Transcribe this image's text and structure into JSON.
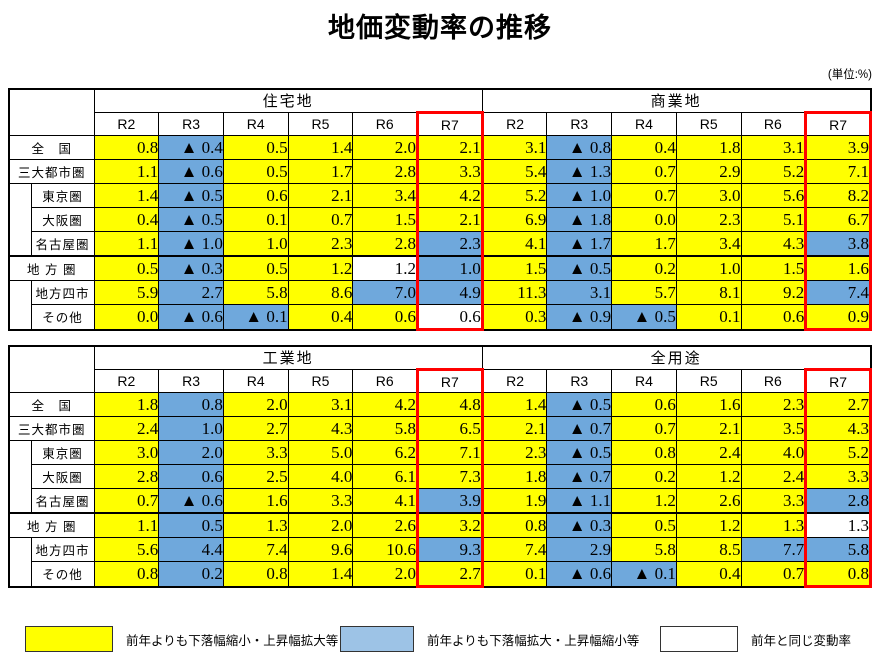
{
  "title": "地価変動率の推移",
  "unit_note": "(単位:%)",
  "colors": {
    "up": "#FFFF00",
    "down": "#6FA8DC",
    "same": "#FFFFFF",
    "legend_down": "#9DC3E6",
    "highlight_border": "#FF0000"
  },
  "year_headers": [
    "R2",
    "R3",
    "R4",
    "R5",
    "R6",
    "R7"
  ],
  "rows": [
    {
      "label": "全　国",
      "spacer": 0
    },
    {
      "label": "三大都市圏",
      "spacer": 0
    },
    {
      "label": "東京圏",
      "spacer": 3
    },
    {
      "label": "大阪圏",
      "spacer": -1
    },
    {
      "label": "名古屋圏",
      "spacer": -1
    },
    {
      "label": "地 方 圏",
      "spacer": 0
    },
    {
      "label": "地方四市",
      "spacer": 2
    },
    {
      "label": "その他",
      "spacer": -1
    }
  ],
  "tables": [
    {
      "sections": [
        {
          "name": "住宅地",
          "rows": [
            [
              [
                "0.8",
                "y"
              ],
              [
                "▲ 0.4",
                "b"
              ],
              [
                "0.5",
                "y"
              ],
              [
                "1.4",
                "y"
              ],
              [
                "2.0",
                "y"
              ],
              [
                "2.1",
                "y"
              ]
            ],
            [
              [
                "1.1",
                "y"
              ],
              [
                "▲ 0.6",
                "b"
              ],
              [
                "0.5",
                "y"
              ],
              [
                "1.7",
                "y"
              ],
              [
                "2.8",
                "y"
              ],
              [
                "3.3",
                "y"
              ]
            ],
            [
              [
                "1.4",
                "y"
              ],
              [
                "▲ 0.5",
                "b"
              ],
              [
                "0.6",
                "y"
              ],
              [
                "2.1",
                "y"
              ],
              [
                "3.4",
                "y"
              ],
              [
                "4.2",
                "y"
              ]
            ],
            [
              [
                "0.4",
                "y"
              ],
              [
                "▲ 0.5",
                "b"
              ],
              [
                "0.1",
                "y"
              ],
              [
                "0.7",
                "y"
              ],
              [
                "1.5",
                "y"
              ],
              [
                "2.1",
                "y"
              ]
            ],
            [
              [
                "1.1",
                "y"
              ],
              [
                "▲ 1.0",
                "b"
              ],
              [
                "1.0",
                "y"
              ],
              [
                "2.3",
                "y"
              ],
              [
                "2.8",
                "y"
              ],
              [
                "2.3",
                "b"
              ]
            ],
            [
              [
                "0.5",
                "y"
              ],
              [
                "▲ 0.3",
                "b"
              ],
              [
                "0.5",
                "y"
              ],
              [
                "1.2",
                "y"
              ],
              [
                "1.2",
                "w"
              ],
              [
                "1.0",
                "b"
              ]
            ],
            [
              [
                "5.9",
                "y"
              ],
              [
                "2.7",
                "b"
              ],
              [
                "5.8",
                "y"
              ],
              [
                "8.6",
                "y"
              ],
              [
                "7.0",
                "b"
              ],
              [
                "4.9",
                "b"
              ]
            ],
            [
              [
                "0.0",
                "y"
              ],
              [
                "▲ 0.6",
                "b"
              ],
              [
                "▲ 0.1",
                "b"
              ],
              [
                "0.4",
                "y"
              ],
              [
                "0.6",
                "y"
              ],
              [
                "0.6",
                "w"
              ]
            ]
          ]
        },
        {
          "name": "商業地",
          "rows": [
            [
              [
                "3.1",
                "y"
              ],
              [
                "▲ 0.8",
                "b"
              ],
              [
                "0.4",
                "y"
              ],
              [
                "1.8",
                "y"
              ],
              [
                "3.1",
                "y"
              ],
              [
                "3.9",
                "y"
              ]
            ],
            [
              [
                "5.4",
                "y"
              ],
              [
                "▲ 1.3",
                "b"
              ],
              [
                "0.7",
                "y"
              ],
              [
                "2.9",
                "y"
              ],
              [
                "5.2",
                "y"
              ],
              [
                "7.1",
                "y"
              ]
            ],
            [
              [
                "5.2",
                "y"
              ],
              [
                "▲ 1.0",
                "b"
              ],
              [
                "0.7",
                "y"
              ],
              [
                "3.0",
                "y"
              ],
              [
                "5.6",
                "y"
              ],
              [
                "8.2",
                "y"
              ]
            ],
            [
              [
                "6.9",
                "y"
              ],
              [
                "▲ 1.8",
                "b"
              ],
              [
                "0.0",
                "y"
              ],
              [
                "2.3",
                "y"
              ],
              [
                "5.1",
                "y"
              ],
              [
                "6.7",
                "y"
              ]
            ],
            [
              [
                "4.1",
                "y"
              ],
              [
                "▲ 1.7",
                "b"
              ],
              [
                "1.7",
                "y"
              ],
              [
                "3.4",
                "y"
              ],
              [
                "4.3",
                "y"
              ],
              [
                "3.8",
                "b"
              ]
            ],
            [
              [
                "1.5",
                "y"
              ],
              [
                "▲ 0.5",
                "b"
              ],
              [
                "0.2",
                "y"
              ],
              [
                "1.0",
                "y"
              ],
              [
                "1.5",
                "y"
              ],
              [
                "1.6",
                "y"
              ]
            ],
            [
              [
                "11.3",
                "y"
              ],
              [
                "3.1",
                "b"
              ],
              [
                "5.7",
                "y"
              ],
              [
                "8.1",
                "y"
              ],
              [
                "9.2",
                "y"
              ],
              [
                "7.4",
                "b"
              ]
            ],
            [
              [
                "0.3",
                "y"
              ],
              [
                "▲ 0.9",
                "b"
              ],
              [
                "▲ 0.5",
                "b"
              ],
              [
                "0.1",
                "y"
              ],
              [
                "0.6",
                "y"
              ],
              [
                "0.9",
                "y"
              ]
            ]
          ]
        }
      ]
    },
    {
      "sections": [
        {
          "name": "工業地",
          "rows": [
            [
              [
                "1.8",
                "y"
              ],
              [
                "0.8",
                "b"
              ],
              [
                "2.0",
                "y"
              ],
              [
                "3.1",
                "y"
              ],
              [
                "4.2",
                "y"
              ],
              [
                "4.8",
                "y"
              ]
            ],
            [
              [
                "2.4",
                "y"
              ],
              [
                "1.0",
                "b"
              ],
              [
                "2.7",
                "y"
              ],
              [
                "4.3",
                "y"
              ],
              [
                "5.8",
                "y"
              ],
              [
                "6.5",
                "y"
              ]
            ],
            [
              [
                "3.0",
                "y"
              ],
              [
                "2.0",
                "b"
              ],
              [
                "3.3",
                "y"
              ],
              [
                "5.0",
                "y"
              ],
              [
                "6.2",
                "y"
              ],
              [
                "7.1",
                "y"
              ]
            ],
            [
              [
                "2.8",
                "y"
              ],
              [
                "0.6",
                "b"
              ],
              [
                "2.5",
                "y"
              ],
              [
                "4.0",
                "y"
              ],
              [
                "6.1",
                "y"
              ],
              [
                "7.3",
                "y"
              ]
            ],
            [
              [
                "0.7",
                "y"
              ],
              [
                "▲ 0.6",
                "b"
              ],
              [
                "1.6",
                "y"
              ],
              [
                "3.3",
                "y"
              ],
              [
                "4.1",
                "y"
              ],
              [
                "3.9",
                "b"
              ]
            ],
            [
              [
                "1.1",
                "y"
              ],
              [
                "0.5",
                "b"
              ],
              [
                "1.3",
                "y"
              ],
              [
                "2.0",
                "y"
              ],
              [
                "2.6",
                "y"
              ],
              [
                "3.2",
                "y"
              ]
            ],
            [
              [
                "5.6",
                "y"
              ],
              [
                "4.4",
                "b"
              ],
              [
                "7.4",
                "y"
              ],
              [
                "9.6",
                "y"
              ],
              [
                "10.6",
                "y"
              ],
              [
                "9.3",
                "b"
              ]
            ],
            [
              [
                "0.8",
                "y"
              ],
              [
                "0.2",
                "b"
              ],
              [
                "0.8",
                "y"
              ],
              [
                "1.4",
                "y"
              ],
              [
                "2.0",
                "y"
              ],
              [
                "2.7",
                "y"
              ]
            ]
          ]
        },
        {
          "name": "全用途",
          "rows": [
            [
              [
                "1.4",
                "y"
              ],
              [
                "▲ 0.5",
                "b"
              ],
              [
                "0.6",
                "y"
              ],
              [
                "1.6",
                "y"
              ],
              [
                "2.3",
                "y"
              ],
              [
                "2.7",
                "y"
              ]
            ],
            [
              [
                "2.1",
                "y"
              ],
              [
                "▲ 0.7",
                "b"
              ],
              [
                "0.7",
                "y"
              ],
              [
                "2.1",
                "y"
              ],
              [
                "3.5",
                "y"
              ],
              [
                "4.3",
                "y"
              ]
            ],
            [
              [
                "2.3",
                "y"
              ],
              [
                "▲ 0.5",
                "b"
              ],
              [
                "0.8",
                "y"
              ],
              [
                "2.4",
                "y"
              ],
              [
                "4.0",
                "y"
              ],
              [
                "5.2",
                "y"
              ]
            ],
            [
              [
                "1.8",
                "y"
              ],
              [
                "▲ 0.7",
                "b"
              ],
              [
                "0.2",
                "y"
              ],
              [
                "1.2",
                "y"
              ],
              [
                "2.4",
                "y"
              ],
              [
                "3.3",
                "y"
              ]
            ],
            [
              [
                "1.9",
                "y"
              ],
              [
                "▲ 1.1",
                "b"
              ],
              [
                "1.2",
                "y"
              ],
              [
                "2.6",
                "y"
              ],
              [
                "3.3",
                "y"
              ],
              [
                "2.8",
                "b"
              ]
            ],
            [
              [
                "0.8",
                "y"
              ],
              [
                "▲ 0.3",
                "b"
              ],
              [
                "0.5",
                "y"
              ],
              [
                "1.2",
                "y"
              ],
              [
                "1.3",
                "y"
              ],
              [
                "1.3",
                "w"
              ]
            ],
            [
              [
                "7.4",
                "y"
              ],
              [
                "2.9",
                "b"
              ],
              [
                "5.8",
                "y"
              ],
              [
                "8.5",
                "y"
              ],
              [
                "7.7",
                "b"
              ],
              [
                "5.8",
                "b"
              ]
            ],
            [
              [
                "0.1",
                "y"
              ],
              [
                "▲ 0.6",
                "b"
              ],
              [
                "▲ 0.1",
                "b"
              ],
              [
                "0.4",
                "y"
              ],
              [
                "0.7",
                "y"
              ],
              [
                "0.8",
                "y"
              ]
            ]
          ]
        }
      ]
    }
  ],
  "legend": [
    {
      "key": "up",
      "label": "前年よりも下落幅縮小・上昇幅拡大等"
    },
    {
      "key": "down",
      "label": "前年よりも下落幅拡大・上昇幅縮小等"
    },
    {
      "key": "same",
      "label": "前年と同じ変動率"
    }
  ]
}
